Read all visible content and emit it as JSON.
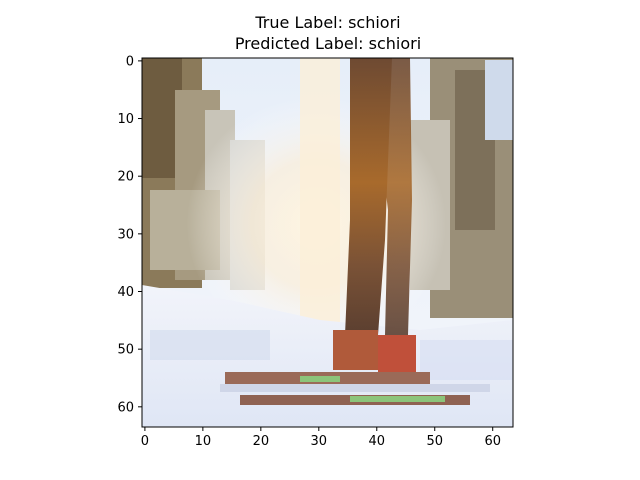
{
  "figure": {
    "title_line1": "True Label: schiori",
    "title_line2": "Predicted Label: schiori"
  },
  "image": {
    "pixel_grid": [
      64,
      64
    ],
    "description": "pixelated photo: skier legs and skis on snow in a sunlit forest"
  },
  "axes": {
    "x_range": [
      -0.5,
      63.5
    ],
    "y_range": [
      63.5,
      -0.5
    ],
    "x_ticks": [
      "0",
      "10",
      "20",
      "30",
      "40",
      "50",
      "60"
    ],
    "y_ticks": [
      "0",
      "10",
      "20",
      "30",
      "40",
      "50",
      "60"
    ],
    "x_tick_values": [
      0,
      10,
      20,
      30,
      40,
      50,
      60
    ],
    "y_tick_values": [
      0,
      10,
      20,
      30,
      40,
      50,
      60
    ]
  },
  "colors": {
    "snow": "#e9eef8",
    "sky": "#eef3fb",
    "trees_dark": "#7a6a4e",
    "sun": "#f6d7a0",
    "legs": "#7a4f2e",
    "ski_stripe": "#9a6a58",
    "green_accent": "#8cc47a"
  }
}
